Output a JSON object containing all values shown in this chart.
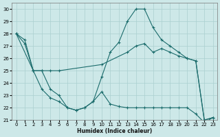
{
  "xlabel": "Humidex (Indice chaleur)",
  "bg_color": "#cde8e8",
  "grid_color": "#aacfcf",
  "line_color": "#1a6b6b",
  "xlim": [
    -0.5,
    23.5
  ],
  "ylim": [
    21,
    30.5
  ],
  "yticks": [
    21,
    22,
    23,
    24,
    25,
    26,
    27,
    28,
    29,
    30
  ],
  "xticks": [
    0,
    1,
    2,
    3,
    4,
    5,
    6,
    7,
    8,
    9,
    10,
    11,
    12,
    13,
    14,
    15,
    16,
    17,
    18,
    19,
    20,
    21,
    22,
    23
  ],
  "series": [
    {
      "x": [
        0,
        1,
        2,
        3,
        4,
        5,
        10,
        13,
        14,
        15,
        16,
        17,
        18,
        19,
        20,
        21,
        22,
        23
      ],
      "y": [
        28,
        27.5,
        25,
        25,
        25,
        25,
        25.5,
        26.5,
        27,
        27.2,
        26.5,
        26.8,
        26.5,
        26.2,
        26.0,
        25.8,
        21.0,
        21.2
      ]
    },
    {
      "x": [
        0,
        1,
        2,
        3,
        4,
        5,
        6,
        7,
        8,
        9,
        10,
        11,
        12,
        13,
        14,
        15,
        16,
        17,
        18,
        19,
        20,
        21,
        22,
        23
      ],
      "y": [
        28,
        27.2,
        25,
        25,
        23.5,
        23.0,
        22.0,
        21.8,
        22.0,
        22.5,
        24.5,
        26.5,
        27.3,
        29.0,
        30.0,
        30.0,
        28.5,
        27.5,
        27.0,
        26.5,
        26.0,
        25.8,
        21.0,
        21.2
      ]
    },
    {
      "x": [
        0,
        2,
        3,
        4,
        5,
        6,
        7,
        8,
        9,
        10,
        11,
        12,
        13,
        14,
        15,
        16,
        17,
        18,
        19,
        20,
        21,
        22,
        23
      ],
      "y": [
        28,
        25,
        23.5,
        22.8,
        22.5,
        22.0,
        21.8,
        22.0,
        22.5,
        23.3,
        22.3,
        22.1,
        22.0,
        22.0,
        22.0,
        22.0,
        22.0,
        22.0,
        22.0,
        22.0,
        21.5,
        20.8,
        21.2
      ]
    }
  ]
}
